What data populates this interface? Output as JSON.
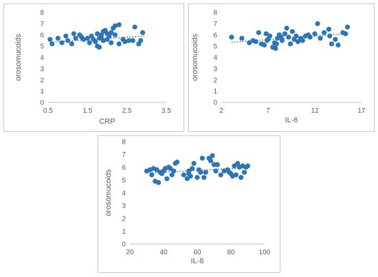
{
  "chart_data": [
    {
      "type": "scatter",
      "xlabel": "CRP",
      "ylabel": "orosomucoids",
      "xlim": [
        0.5,
        3.5
      ],
      "ylim": [
        0,
        8
      ],
      "x_ticks": [
        "0.5",
        "1.5",
        "2.5",
        "3.5"
      ],
      "y_ticks": [
        "0",
        "1",
        "2",
        "3",
        "4",
        "5",
        "6",
        "7",
        "8"
      ],
      "trendline": {
        "style": "dotted",
        "x": [
          0.55,
          2.95
        ],
        "y": [
          5.35,
          5.9
        ]
      },
      "marker_color": "#2E75B6",
      "grid": false,
      "points": [
        [
          0.55,
          5.6
        ],
        [
          0.6,
          5.2
        ],
        [
          0.75,
          5.7
        ],
        [
          0.85,
          5.3
        ],
        [
          0.95,
          5.9
        ],
        [
          1.0,
          5.5
        ],
        [
          1.1,
          5.2
        ],
        [
          1.15,
          6.1
        ],
        [
          1.2,
          5.7
        ],
        [
          1.3,
          6.0
        ],
        [
          1.35,
          5.8
        ],
        [
          1.4,
          5.6
        ],
        [
          1.5,
          5.7
        ],
        [
          1.55,
          5.3
        ],
        [
          1.6,
          5.9
        ],
        [
          1.65,
          5.6
        ],
        [
          1.7,
          5.4
        ],
        [
          1.75,
          6.1
        ],
        [
          1.75,
          5.0
        ],
        [
          1.8,
          5.7
        ],
        [
          1.8,
          4.9
        ],
        [
          1.85,
          5.8
        ],
        [
          1.85,
          6.0
        ],
        [
          1.9,
          6.3
        ],
        [
          1.9,
          5.5
        ],
        [
          1.95,
          6.4
        ],
        [
          2.0,
          5.6
        ],
        [
          2.0,
          6.1
        ],
        [
          2.05,
          5.9
        ],
        [
          2.1,
          6.2
        ],
        [
          2.1,
          5.3
        ],
        [
          2.15,
          6.6
        ],
        [
          2.2,
          6.8
        ],
        [
          2.2,
          6.0
        ],
        [
          2.3,
          6.9
        ],
        [
          2.3,
          5.2
        ],
        [
          2.4,
          5.6
        ],
        [
          2.45,
          5.4
        ],
        [
          2.55,
          5.5
        ],
        [
          2.65,
          5.5
        ],
        [
          2.7,
          6.7
        ],
        [
          2.8,
          5.2
        ],
        [
          2.85,
          5.5
        ],
        [
          2.9,
          6.2
        ]
      ]
    },
    {
      "type": "scatter",
      "xlabel": "IL-6",
      "ylabel": "orosomucoids",
      "xlim": [
        2,
        17
      ],
      "ylim": [
        0,
        8
      ],
      "x_ticks": [
        "2",
        "7",
        "12",
        "17"
      ],
      "y_ticks": [
        "0",
        "1",
        "2",
        "3",
        "4",
        "5",
        "6",
        "7",
        "8"
      ],
      "trendline": {
        "style": "dotted",
        "x": [
          3.1,
          15.6
        ],
        "y": [
          5.35,
          6.1
        ]
      },
      "marker_color": "#2E75B6",
      "grid": false,
      "points": [
        [
          3.1,
          5.8
        ],
        [
          4.2,
          5.7
        ],
        [
          5.0,
          5.3
        ],
        [
          5.4,
          5.5
        ],
        [
          5.7,
          5.4
        ],
        [
          6.0,
          6.2
        ],
        [
          6.3,
          5.2
        ],
        [
          6.6,
          5.1
        ],
        [
          6.8,
          6.1
        ],
        [
          6.9,
          5.5
        ],
        [
          7.0,
          5.6
        ],
        [
          7.2,
          5.9
        ],
        [
          7.5,
          4.9
        ],
        [
          7.7,
          5.3
        ],
        [
          7.8,
          4.8
        ],
        [
          7.9,
          5.2
        ],
        [
          8.0,
          5.7
        ],
        [
          8.2,
          6.0
        ],
        [
          8.4,
          5.8
        ],
        [
          8.5,
          5.5
        ],
        [
          8.8,
          6.1
        ],
        [
          9.0,
          6.6
        ],
        [
          9.2,
          5.8
        ],
        [
          9.4,
          5.2
        ],
        [
          9.6,
          6.3
        ],
        [
          9.8,
          5.6
        ],
        [
          10.0,
          5.9
        ],
        [
          10.2,
          5.4
        ],
        [
          10.5,
          5.7
        ],
        [
          10.7,
          5.5
        ],
        [
          11.0,
          5.9
        ],
        [
          11.3,
          6.0
        ],
        [
          11.5,
          5.8
        ],
        [
          12.0,
          6.1
        ],
        [
          12.3,
          7.0
        ],
        [
          12.6,
          5.7
        ],
        [
          13.0,
          6.2
        ],
        [
          13.5,
          6.5
        ],
        [
          13.6,
          5.9
        ],
        [
          13.8,
          5.2
        ],
        [
          14.2,
          5.6
        ],
        [
          14.5,
          5.1
        ],
        [
          15.0,
          6.2
        ],
        [
          15.3,
          6.1
        ],
        [
          15.5,
          6.7
        ]
      ]
    },
    {
      "type": "scatter",
      "xlabel": "IL-8",
      "ylabel": "orosomucoids",
      "xlim": [
        20,
        100
      ],
      "ylim": [
        0,
        8
      ],
      "x_ticks": [
        "20",
        "40",
        "60",
        "80",
        "100"
      ],
      "y_ticks": [
        "0",
        "1",
        "2",
        "3",
        "4",
        "5",
        "6",
        "7",
        "8"
      ],
      "trendline": {
        "style": "dotted",
        "x": [
          30,
          90
        ],
        "y": [
          5.55,
          5.95
        ]
      },
      "marker_color": "#2E75B6",
      "grid": false,
      "points": [
        [
          30,
          5.7
        ],
        [
          32,
          5.8
        ],
        [
          33,
          5.4
        ],
        [
          34,
          5.9
        ],
        [
          35,
          4.9
        ],
        [
          36,
          5.8
        ],
        [
          37,
          4.8
        ],
        [
          38,
          5.6
        ],
        [
          39,
          5.5
        ],
        [
          40,
          5.7
        ],
        [
          41,
          5.9
        ],
        [
          42,
          5.1
        ],
        [
          43,
          6.0
        ],
        [
          44,
          5.9
        ],
        [
          45,
          5.4
        ],
        [
          46,
          5.7
        ],
        [
          47,
          6.3
        ],
        [
          48,
          6.4
        ],
        [
          52,
          5.4
        ],
        [
          54,
          5.1
        ],
        [
          55,
          5.7
        ],
        [
          55,
          5.5
        ],
        [
          56,
          5.3
        ],
        [
          57,
          5.9
        ],
        [
          58,
          6.3
        ],
        [
          60,
          5.2
        ],
        [
          61,
          5.8
        ],
        [
          62,
          5.6
        ],
        [
          63,
          6.7
        ],
        [
          64,
          5.2
        ],
        [
          65,
          5.6
        ],
        [
          67,
          6.7
        ],
        [
          68,
          6.5
        ],
        [
          69,
          6.9
        ],
        [
          70,
          6.2
        ],
        [
          71,
          5.7
        ],
        [
          72,
          6.2
        ],
        [
          74,
          5.4
        ],
        [
          76,
          5.7
        ],
        [
          78,
          5.8
        ],
        [
          79,
          5.6
        ],
        [
          80,
          5.5
        ],
        [
          81,
          5.3
        ],
        [
          82,
          6.1
        ],
        [
          83,
          5.4
        ],
        [
          84,
          6.3
        ],
        [
          85,
          6.0
        ],
        [
          86,
          5.2
        ],
        [
          87,
          6.1
        ],
        [
          88,
          5.6
        ],
        [
          89,
          6.0
        ],
        [
          90,
          6.1
        ]
      ]
    }
  ]
}
